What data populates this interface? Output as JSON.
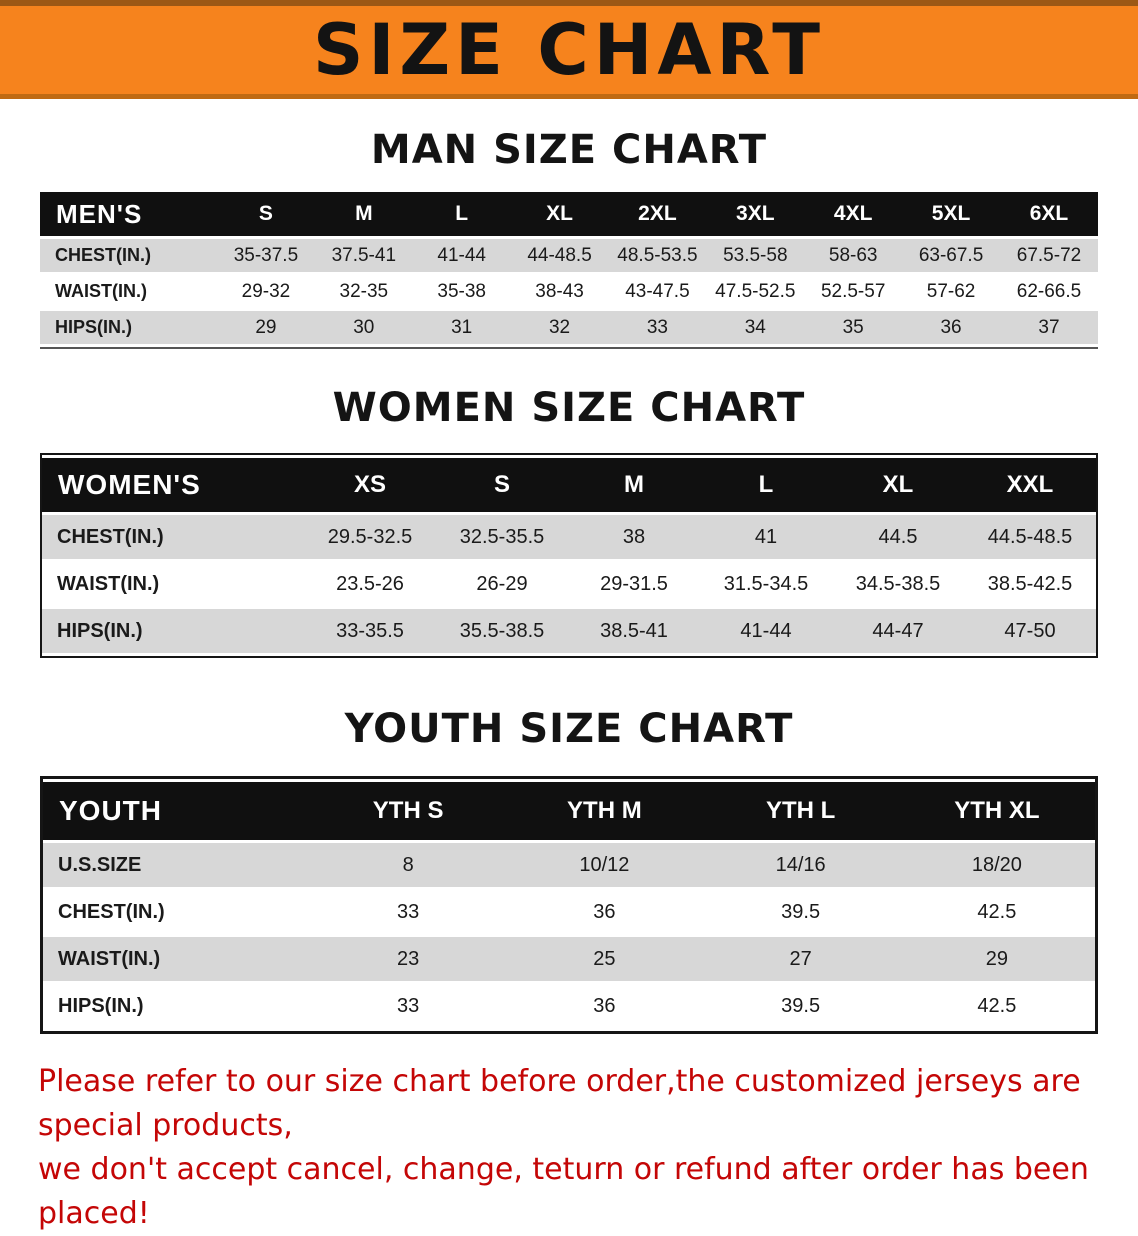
{
  "banner": {
    "title": "SIZE CHART",
    "bg_color": "#f6831d"
  },
  "sections": {
    "men": {
      "heading": "MAN SIZE CHART",
      "table": {
        "label": "MEN'S",
        "sizes": [
          "S",
          "M",
          "L",
          "XL",
          "2XL",
          "3XL",
          "4XL",
          "5XL",
          "6XL"
        ],
        "rows": [
          {
            "label": "CHEST(IN.)",
            "values": [
              "35-37.5",
              "37.5-41",
              "41-44",
              "44-48.5",
              "48.5-53.5",
              "53.5-58",
              "58-63",
              "63-67.5",
              "67.5-72"
            ]
          },
          {
            "label": "WAIST(IN.)",
            "values": [
              "29-32",
              "32-35",
              "35-38",
              "38-43",
              "43-47.5",
              "47.5-52.5",
              "52.5-57",
              "57-62",
              "62-66.5"
            ]
          },
          {
            "label": "HIPS(IN.)",
            "values": [
              "29",
              "30",
              "31",
              "32",
              "33",
              "34",
              "35",
              "36",
              "37"
            ]
          }
        ]
      }
    },
    "women": {
      "heading": "WOMEN SIZE CHART",
      "table": {
        "label": "WOMEN'S",
        "sizes": [
          "XS",
          "S",
          "M",
          "L",
          "XL",
          "XXL"
        ],
        "rows": [
          {
            "label": "CHEST(IN.)",
            "values": [
              "29.5-32.5",
              "32.5-35.5",
              "38",
              "41",
              "44.5",
              "44.5-48.5"
            ]
          },
          {
            "label": "WAIST(IN.)",
            "values": [
              "23.5-26",
              "26-29",
              "29-31.5",
              "31.5-34.5",
              "34.5-38.5",
              "38.5-42.5"
            ]
          },
          {
            "label": "HIPS(IN.)",
            "values": [
              "33-35.5",
              "35.5-38.5",
              "38.5-41",
              "41-44",
              "44-47",
              "47-50"
            ]
          }
        ]
      }
    },
    "youth": {
      "heading": "YOUTH SIZE CHART",
      "table": {
        "label": "YOUTH",
        "sizes": [
          "YTH S",
          "YTH M",
          "YTH L",
          "YTH XL"
        ],
        "rows": [
          {
            "label": "U.S.SIZE",
            "values": [
              "8",
              "10/12",
              "14/16",
              "18/20"
            ]
          },
          {
            "label": "CHEST(IN.)",
            "values": [
              "33",
              "36",
              "39.5",
              "42.5"
            ]
          },
          {
            "label": "WAIST(IN.)",
            "values": [
              "23",
              "25",
              "27",
              "29"
            ]
          },
          {
            "label": "HIPS(IN.)",
            "values": [
              "33",
              "36",
              "39.5",
              "42.5"
            ]
          }
        ]
      }
    }
  },
  "note": {
    "color": "#c40606",
    "lines": [
      "Please refer to our size chart before order,the customized jerseys are special products,",
      "we don't accept cancel, change, teturn or refund after order has been placed!"
    ]
  }
}
